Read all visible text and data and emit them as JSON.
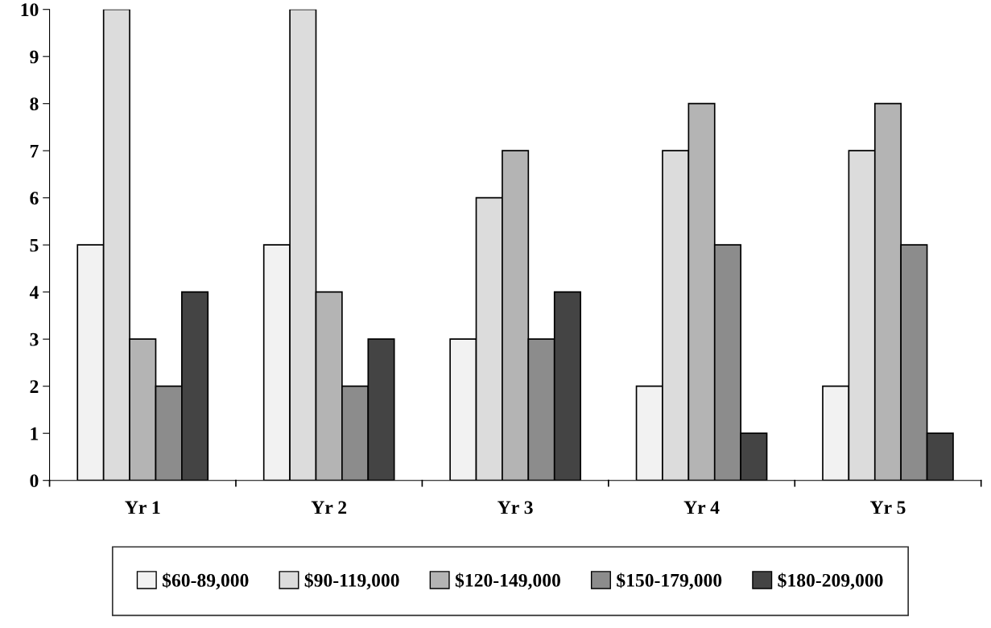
{
  "chart_data": {
    "type": "bar",
    "categories": [
      "Yr 1",
      "Yr 2",
      "Yr 3",
      "Yr 4",
      "Yr 5"
    ],
    "series": [
      {
        "name": "$60-89,000",
        "color": "#f2f2f2",
        "values": [
          5,
          5,
          3,
          2,
          2
        ]
      },
      {
        "name": "$90-119,000",
        "color": "#dcdcdc",
        "values": [
          10,
          10,
          6,
          7,
          7
        ]
      },
      {
        "name": "$120-149,000",
        "color": "#b4b4b4",
        "values": [
          3,
          4,
          7,
          8,
          8
        ]
      },
      {
        "name": "$150-179,000",
        "color": "#8c8c8c",
        "values": [
          2,
          2,
          3,
          5,
          5
        ]
      },
      {
        "name": "$180-209,000",
        "color": "#444444",
        "values": [
          4,
          3,
          4,
          1,
          1
        ]
      }
    ],
    "ylim": [
      0,
      10
    ],
    "yticks": [
      0,
      1,
      2,
      3,
      4,
      5,
      6,
      7,
      8,
      9,
      10
    ],
    "grid": false,
    "legend": "bottom"
  }
}
